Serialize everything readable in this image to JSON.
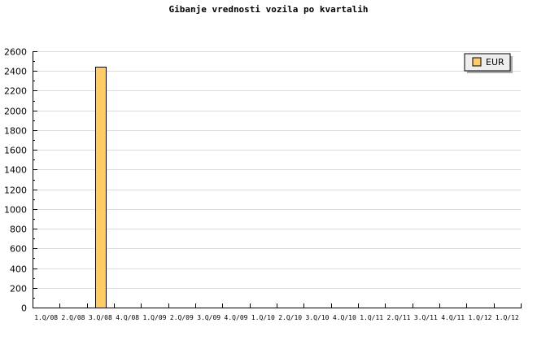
{
  "chart_data": {
    "type": "bar",
    "title": "Gibanje vrednosti vozila po kvartalih",
    "xlabel": "",
    "ylabel": "",
    "categories": [
      "1.Q/08",
      "2.Q/08",
      "3.Q/08",
      "4.Q/08",
      "1.Q/09",
      "2.Q/09",
      "3.Q/09",
      "4.Q/09",
      "1.Q/10",
      "2.Q/10",
      "3.Q/10",
      "4.Q/10",
      "1.Q/11",
      "2.Q/11",
      "3.Q/11",
      "4.Q/11",
      "1.Q/12",
      "1.Q/12"
    ],
    "series": [
      {
        "name": "EUR",
        "color": "#ffcc66",
        "values": [
          0,
          0,
          2440,
          0,
          0,
          0,
          0,
          0,
          0,
          0,
          0,
          0,
          0,
          0,
          0,
          0,
          0,
          0
        ]
      }
    ],
    "ylim": [
      0,
      2600
    ],
    "yticks": [
      0,
      200,
      400,
      600,
      800,
      1000,
      1200,
      1400,
      1600,
      1800,
      2000,
      2200,
      2400,
      2600
    ],
    "grid": true,
    "legend_position": "top-right"
  }
}
